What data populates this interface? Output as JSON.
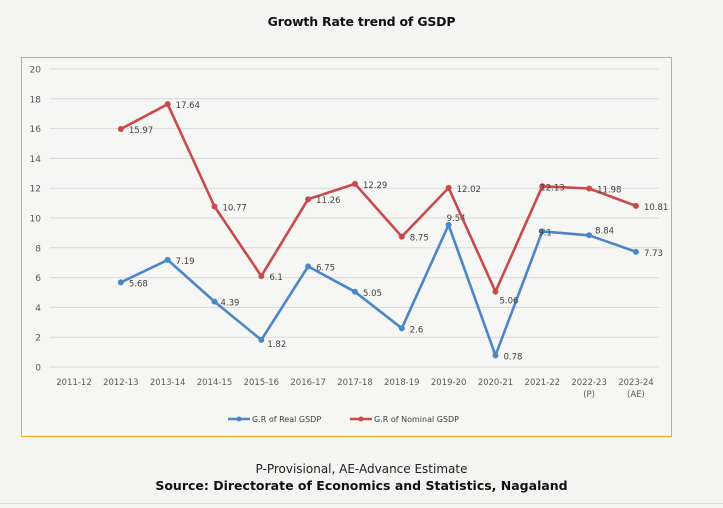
{
  "page": {
    "title": "Growth Rate trend of GSDP",
    "footnote": "P-Provisional, AE-Advance Estimate",
    "source": "Source: Directorate of Economics and Statistics, Nagaland"
  },
  "chart_data": {
    "type": "line",
    "title": "Growth Rate trend of GSDP",
    "xlabel": "",
    "ylabel": "",
    "ylim": [
      0,
      20
    ],
    "yticks": [
      0,
      2,
      4,
      6,
      8,
      10,
      12,
      14,
      16,
      18,
      20
    ],
    "grid": true,
    "legend_position": "bottom",
    "categories": [
      [
        "2011-12"
      ],
      [
        "2012-13"
      ],
      [
        "2013-14"
      ],
      [
        "2014-15"
      ],
      [
        "2015-16"
      ],
      [
        "2016-17"
      ],
      [
        "2017-18"
      ],
      [
        "2018-19"
      ],
      [
        "2019-20"
      ],
      [
        "2020-21"
      ],
      [
        "2021-22"
      ],
      [
        "2022-23",
        "(P)"
      ],
      [
        "2023-24",
        "(AE)"
      ]
    ],
    "series": [
      {
        "name": "G.R of Real GSDP",
        "color": "#4a86c8",
        "values": [
          null,
          5.68,
          7.19,
          4.39,
          1.82,
          6.75,
          5.05,
          2.6,
          9.54,
          0.78,
          9.1,
          8.84,
          7.73
        ]
      },
      {
        "name": "G.R of Nominal GSDP",
        "color": "#c84a4a",
        "values": [
          null,
          15.97,
          17.64,
          10.77,
          6.1,
          11.26,
          12.29,
          8.75,
          12.02,
          5.06,
          12.13,
          11.98,
          10.81
        ]
      }
    ],
    "frame_color": "#f5a623"
  }
}
